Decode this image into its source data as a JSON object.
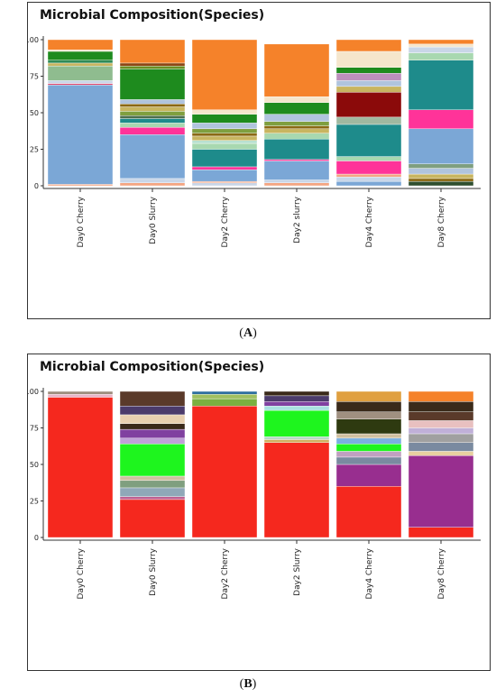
{
  "chart_data": [
    {
      "type": "bar",
      "stacked": true,
      "panel": "A",
      "title": "Microbial Composition(Species)",
      "categories": [
        "Day0 Cherry",
        "Day0 Slurry",
        "Day2 Cherry",
        "Day2 slurry",
        "Day4 Cherry",
        "Day8 Cherry"
      ],
      "yticks": [
        "0",
        "25",
        "50",
        "75",
        "100"
      ],
      "ylim": [
        0,
        100
      ],
      "grid": false,
      "stacks": [
        [
          {
            "color": "#F4A582",
            "value": 1
          },
          {
            "color": "#7BA7D6",
            "value": 68
          },
          {
            "color": "#E34A6F",
            "value": 1
          },
          {
            "color": "#C9D6E8",
            "value": 2
          },
          {
            "color": "#8FBC8F",
            "value": 10
          },
          {
            "color": "#C8B560",
            "value": 2
          },
          {
            "color": "#2E8B57",
            "value": 2
          },
          {
            "color": "#1E8B1E",
            "value": 6
          },
          {
            "color": "#F5E6CC",
            "value": 1
          },
          {
            "color": "#F5822A",
            "value": 7
          }
        ],
        [
          {
            "color": "#F4A582",
            "value": 2
          },
          {
            "color": "#C9D6E8",
            "value": 3
          },
          {
            "color": "#7BA7D6",
            "value": 30
          },
          {
            "color": "#FF3399",
            "value": 5
          },
          {
            "color": "#A8D8B0",
            "value": 3
          },
          {
            "color": "#1E8B8B",
            "value": 3
          },
          {
            "color": "#4E6E4E",
            "value": 2
          },
          {
            "color": "#7F9F3F",
            "value": 3
          },
          {
            "color": "#C8B560",
            "value": 3
          },
          {
            "color": "#8B6914",
            "value": 2
          },
          {
            "color": "#B0C4DE",
            "value": 3
          },
          {
            "color": "#1E8B1E",
            "value": 21
          },
          {
            "color": "#6B8E23",
            "value": 2
          },
          {
            "color": "#8B4513",
            "value": 2
          },
          {
            "color": "#F5822A",
            "value": 16
          }
        ],
        [
          {
            "color": "#C9D6E8",
            "value": 2
          },
          {
            "color": "#F4A582",
            "value": 1
          },
          {
            "color": "#7BA7D6",
            "value": 8
          },
          {
            "color": "#FF3399",
            "value": 2
          },
          {
            "color": "#1E8B8B",
            "value": 12
          },
          {
            "color": "#A8D8B0",
            "value": 4
          },
          {
            "color": "#B8E0D0",
            "value": 2
          },
          {
            "color": "#C8B560",
            "value": 3
          },
          {
            "color": "#8B6914",
            "value": 2
          },
          {
            "color": "#7F9F3F",
            "value": 3
          },
          {
            "color": "#B0C4DE",
            "value": 4
          },
          {
            "color": "#1E8B1E",
            "value": 6
          },
          {
            "color": "#F5E6CC",
            "value": 3
          },
          {
            "color": "#F5822A",
            "value": 48
          }
        ],
        [
          {
            "color": "#F4A582",
            "value": 2
          },
          {
            "color": "#C9D6E8",
            "value": 2
          },
          {
            "color": "#7BA7D6",
            "value": 13
          },
          {
            "color": "#FF3399",
            "value": 1
          },
          {
            "color": "#1E8B8B",
            "value": 14
          },
          {
            "color": "#A8D8B0",
            "value": 4
          },
          {
            "color": "#C8B560",
            "value": 3
          },
          {
            "color": "#8B6914",
            "value": 2
          },
          {
            "color": "#7F9F3F",
            "value": 3
          },
          {
            "color": "#B0C4DE",
            "value": 5
          },
          {
            "color": "#1E8B1E",
            "value": 8
          },
          {
            "color": "#F5E6CC",
            "value": 4
          },
          {
            "color": "#F5822A",
            "value": 36
          }
        ],
        [
          {
            "color": "#7BA7D6",
            "value": 3
          },
          {
            "color": "#C9D6E8",
            "value": 3
          },
          {
            "color": "#F4A582",
            "value": 2
          },
          {
            "color": "#FF3399",
            "value": 9
          },
          {
            "color": "#A8D8B0",
            "value": 3
          },
          {
            "color": "#1E8B8B",
            "value": 22
          },
          {
            "color": "#A0B8A0",
            "value": 5
          },
          {
            "color": "#8B0A0A",
            "value": 17
          },
          {
            "color": "#C8B560",
            "value": 4
          },
          {
            "color": "#B0C4DE",
            "value": 4
          },
          {
            "color": "#BC8FBC",
            "value": 5
          },
          {
            "color": "#1E8B1E",
            "value": 4
          },
          {
            "color": "#F5E6CC",
            "value": 11
          },
          {
            "color": "#F5822A",
            "value": 8
          }
        ],
        [
          {
            "color": "#2F4F2F",
            "value": 3
          },
          {
            "color": "#8B6914",
            "value": 2
          },
          {
            "color": "#C8B560",
            "value": 3
          },
          {
            "color": "#B0C4DE",
            "value": 4
          },
          {
            "color": "#7F9F7F",
            "value": 3
          },
          {
            "color": "#7BA7D6",
            "value": 24
          },
          {
            "color": "#FF3399",
            "value": 13
          },
          {
            "color": "#1E8B8B",
            "value": 34
          },
          {
            "color": "#A8D8B0",
            "value": 5
          },
          {
            "color": "#C9D6E8",
            "value": 4
          },
          {
            "color": "#F5E6CC",
            "value": 2
          },
          {
            "color": "#F5822A",
            "value": 3
          }
        ]
      ]
    },
    {
      "type": "bar",
      "stacked": true,
      "panel": "B",
      "title": "Microbial Composition(Species)",
      "categories": [
        "Day0 Cherry",
        "Day0 Slurry",
        "Day2 Cherry",
        "Day2 Slurry",
        "Day4 Cherry",
        "Day8 Cherry"
      ],
      "yticks": [
        "0",
        "25",
        "50",
        "75",
        "100"
      ],
      "ylim": [
        0,
        100
      ],
      "grid": false,
      "stacks": [
        [
          {
            "color": "#F5281E",
            "value": 96
          },
          {
            "color": "#E8B4C8",
            "value": 2
          },
          {
            "color": "#9E8E7E",
            "value": 2
          }
        ],
        [
          {
            "color": "#F5281E",
            "value": 26
          },
          {
            "color": "#C06090",
            "value": 2
          },
          {
            "color": "#8FA8B8",
            "value": 6
          },
          {
            "color": "#7F9F7F",
            "value": 5
          },
          {
            "color": "#D0C0A0",
            "value": 3
          },
          {
            "color": "#1EF51E",
            "value": 22
          },
          {
            "color": "#C0A0D8",
            "value": 4
          },
          {
            "color": "#8040A0",
            "value": 6
          },
          {
            "color": "#3A2A1A",
            "value": 4
          },
          {
            "color": "#E8D0B0",
            "value": 6
          },
          {
            "color": "#4B3B6B",
            "value": 6
          },
          {
            "color": "#5A3A2A",
            "value": 10
          }
        ],
        [
          {
            "color": "#F5281E",
            "value": 90
          },
          {
            "color": "#7AB040",
            "value": 5
          },
          {
            "color": "#A0C060",
            "value": 3
          },
          {
            "color": "#3070A0",
            "value": 2
          }
        ],
        [
          {
            "color": "#F5281E",
            "value": 65
          },
          {
            "color": "#D0B060",
            "value": 2
          },
          {
            "color": "#B8D8C8",
            "value": 2
          },
          {
            "color": "#1EF51E",
            "value": 18
          },
          {
            "color": "#A8E0E0",
            "value": 3
          },
          {
            "color": "#8040A0",
            "value": 3
          },
          {
            "color": "#4B3B6B",
            "value": 4
          },
          {
            "color": "#3A2A1A",
            "value": 3
          }
        ],
        [
          {
            "color": "#F5281E",
            "value": 35
          },
          {
            "color": "#982E8F",
            "value": 15
          },
          {
            "color": "#7A8AA0",
            "value": 5
          },
          {
            "color": "#C0A0C0",
            "value": 4
          },
          {
            "color": "#1EF51E",
            "value": 5
          },
          {
            "color": "#7AB0E0",
            "value": 4
          },
          {
            "color": "#D0C0A0",
            "value": 3
          },
          {
            "color": "#2E3A10",
            "value": 10
          },
          {
            "color": "#A09080",
            "value": 5
          },
          {
            "color": "#3A2A1A",
            "value": 7
          },
          {
            "color": "#E0A040",
            "value": 7
          }
        ],
        [
          {
            "color": "#F5281E",
            "value": 7
          },
          {
            "color": "#982E8F",
            "value": 49
          },
          {
            "color": "#E8D0A0",
            "value": 3
          },
          {
            "color": "#7A8AA0",
            "value": 6
          },
          {
            "color": "#A0A0A0",
            "value": 6
          },
          {
            "color": "#C0B0D8",
            "value": 4
          },
          {
            "color": "#E8C0C0",
            "value": 5
          },
          {
            "color": "#5A3A2A",
            "value": 6
          },
          {
            "color": "#3A2A1A",
            "value": 7
          },
          {
            "color": "#F5822A",
            "value": 7
          }
        ]
      ]
    }
  ],
  "captions": [
    "A",
    "B"
  ]
}
